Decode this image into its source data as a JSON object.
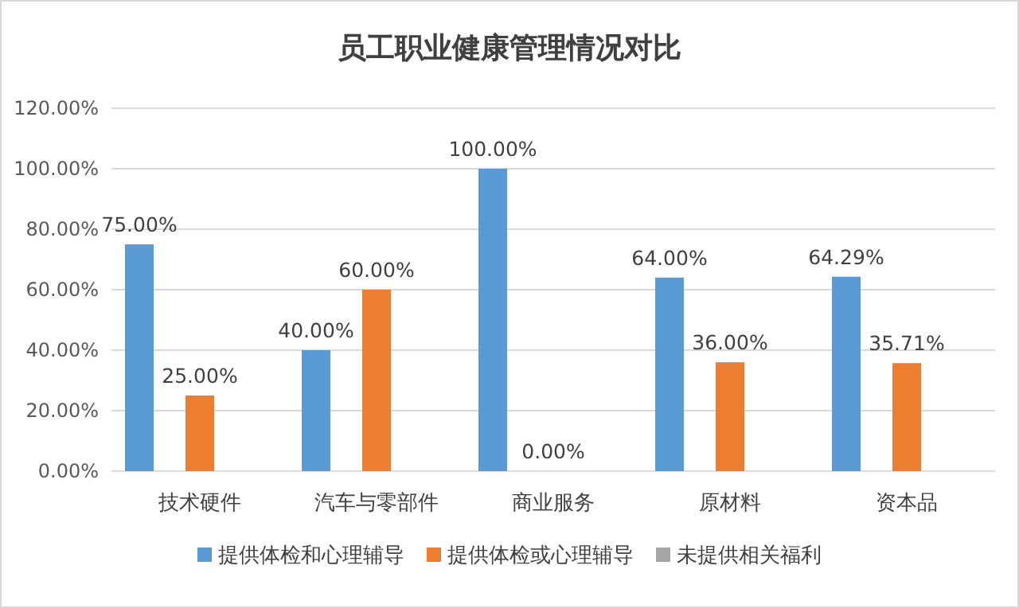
{
  "chart_data": {
    "type": "bar",
    "title": "员工职业健康管理情况对比",
    "categories": [
      "技术硬件",
      "汽车与零部件",
      "商业服务",
      "原材料",
      "资本品"
    ],
    "series": [
      {
        "name": "提供体检和心理辅导",
        "color": "#5b9bd5",
        "values": [
          75,
          40,
          100,
          64,
          64.29
        ],
        "value_labels": [
          "75.00%",
          "40.00%",
          "100.00%",
          "64.00%",
          "64.29%"
        ]
      },
      {
        "name": "提供体检或心理辅导",
        "color": "#ed7d31",
        "values": [
          25,
          60,
          0,
          36,
          35.71
        ],
        "value_labels": [
          "25.00%",
          "60.00%",
          "0.00%",
          "36.00%",
          "35.71%"
        ]
      },
      {
        "name": "未提供相关福利",
        "color": "#a5a5a5",
        "values": [
          0,
          0,
          0,
          0,
          0
        ]
      }
    ],
    "ylim": [
      0,
      120
    ],
    "yticks": [
      {
        "value": 0,
        "label": "0.00%"
      },
      {
        "value": 20,
        "label": "20.00%"
      },
      {
        "value": 40,
        "label": "40.00%"
      },
      {
        "value": 60,
        "label": "60.00%"
      },
      {
        "value": 80,
        "label": "80.00%"
      },
      {
        "value": 100,
        "label": "100.00%"
      },
      {
        "value": 120,
        "label": "120.00%"
      }
    ],
    "grid": "y",
    "legend": "bottom"
  }
}
